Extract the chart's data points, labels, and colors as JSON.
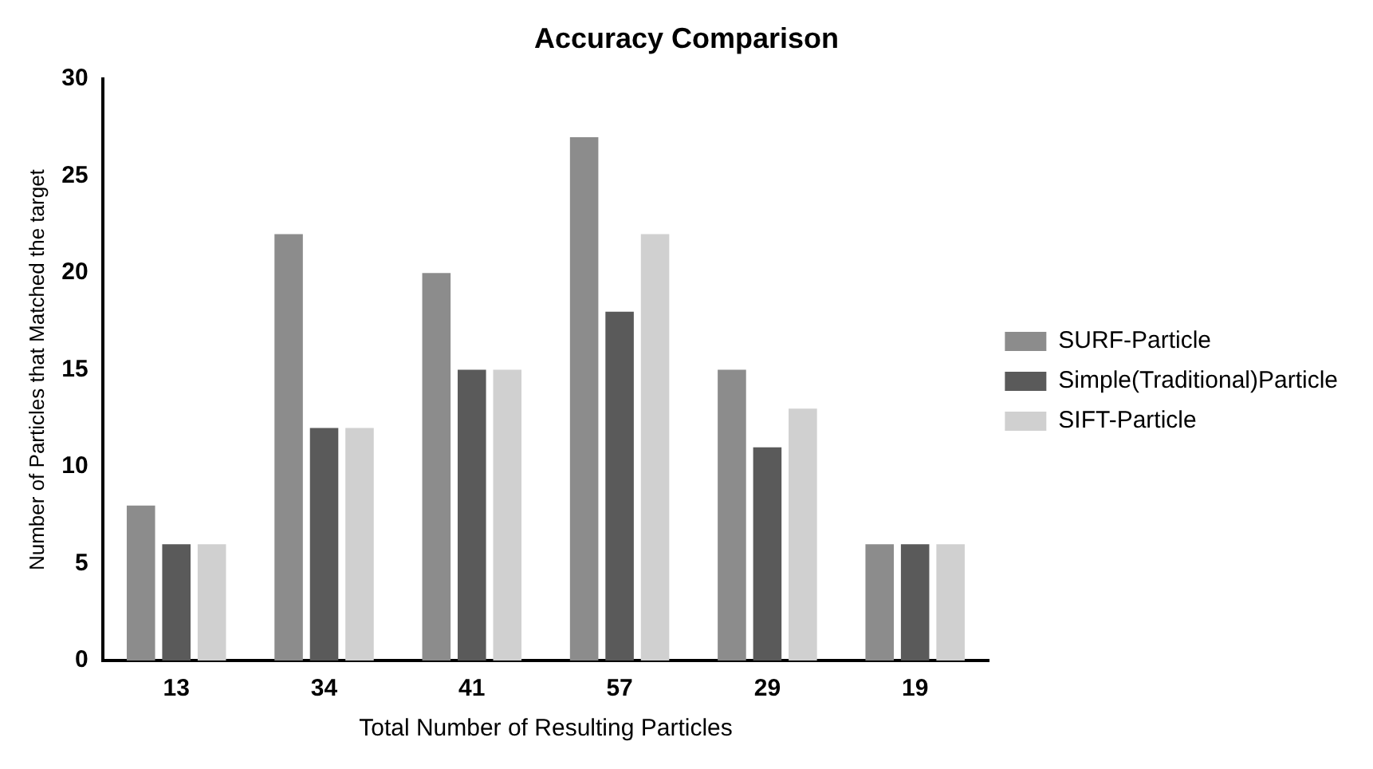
{
  "chart_data": {
    "type": "bar",
    "title": "Accuracy Comparison",
    "xlabel": "Total Number of Resulting Particles",
    "ylabel": "Number of Particles that Matched the target",
    "categories": [
      "13",
      "34",
      "41",
      "57",
      "29",
      "19"
    ],
    "series": [
      {
        "name": "SURF-Particle",
        "color": "#8c8c8c",
        "values": [
          8,
          22,
          20,
          27,
          15,
          6
        ]
      },
      {
        "name": "Simple(Traditional)Particle",
        "color": "#5a5a5a",
        "values": [
          6,
          12,
          15,
          18,
          11,
          6
        ]
      },
      {
        "name": "SIFT-Particle",
        "color": "#d0d0d0",
        "values": [
          6,
          12,
          15,
          22,
          13,
          6
        ]
      }
    ],
    "ylim": [
      0,
      30
    ],
    "yticks": [
      0,
      5,
      10,
      15,
      20,
      25,
      30
    ],
    "grid": false,
    "legend": "right"
  }
}
